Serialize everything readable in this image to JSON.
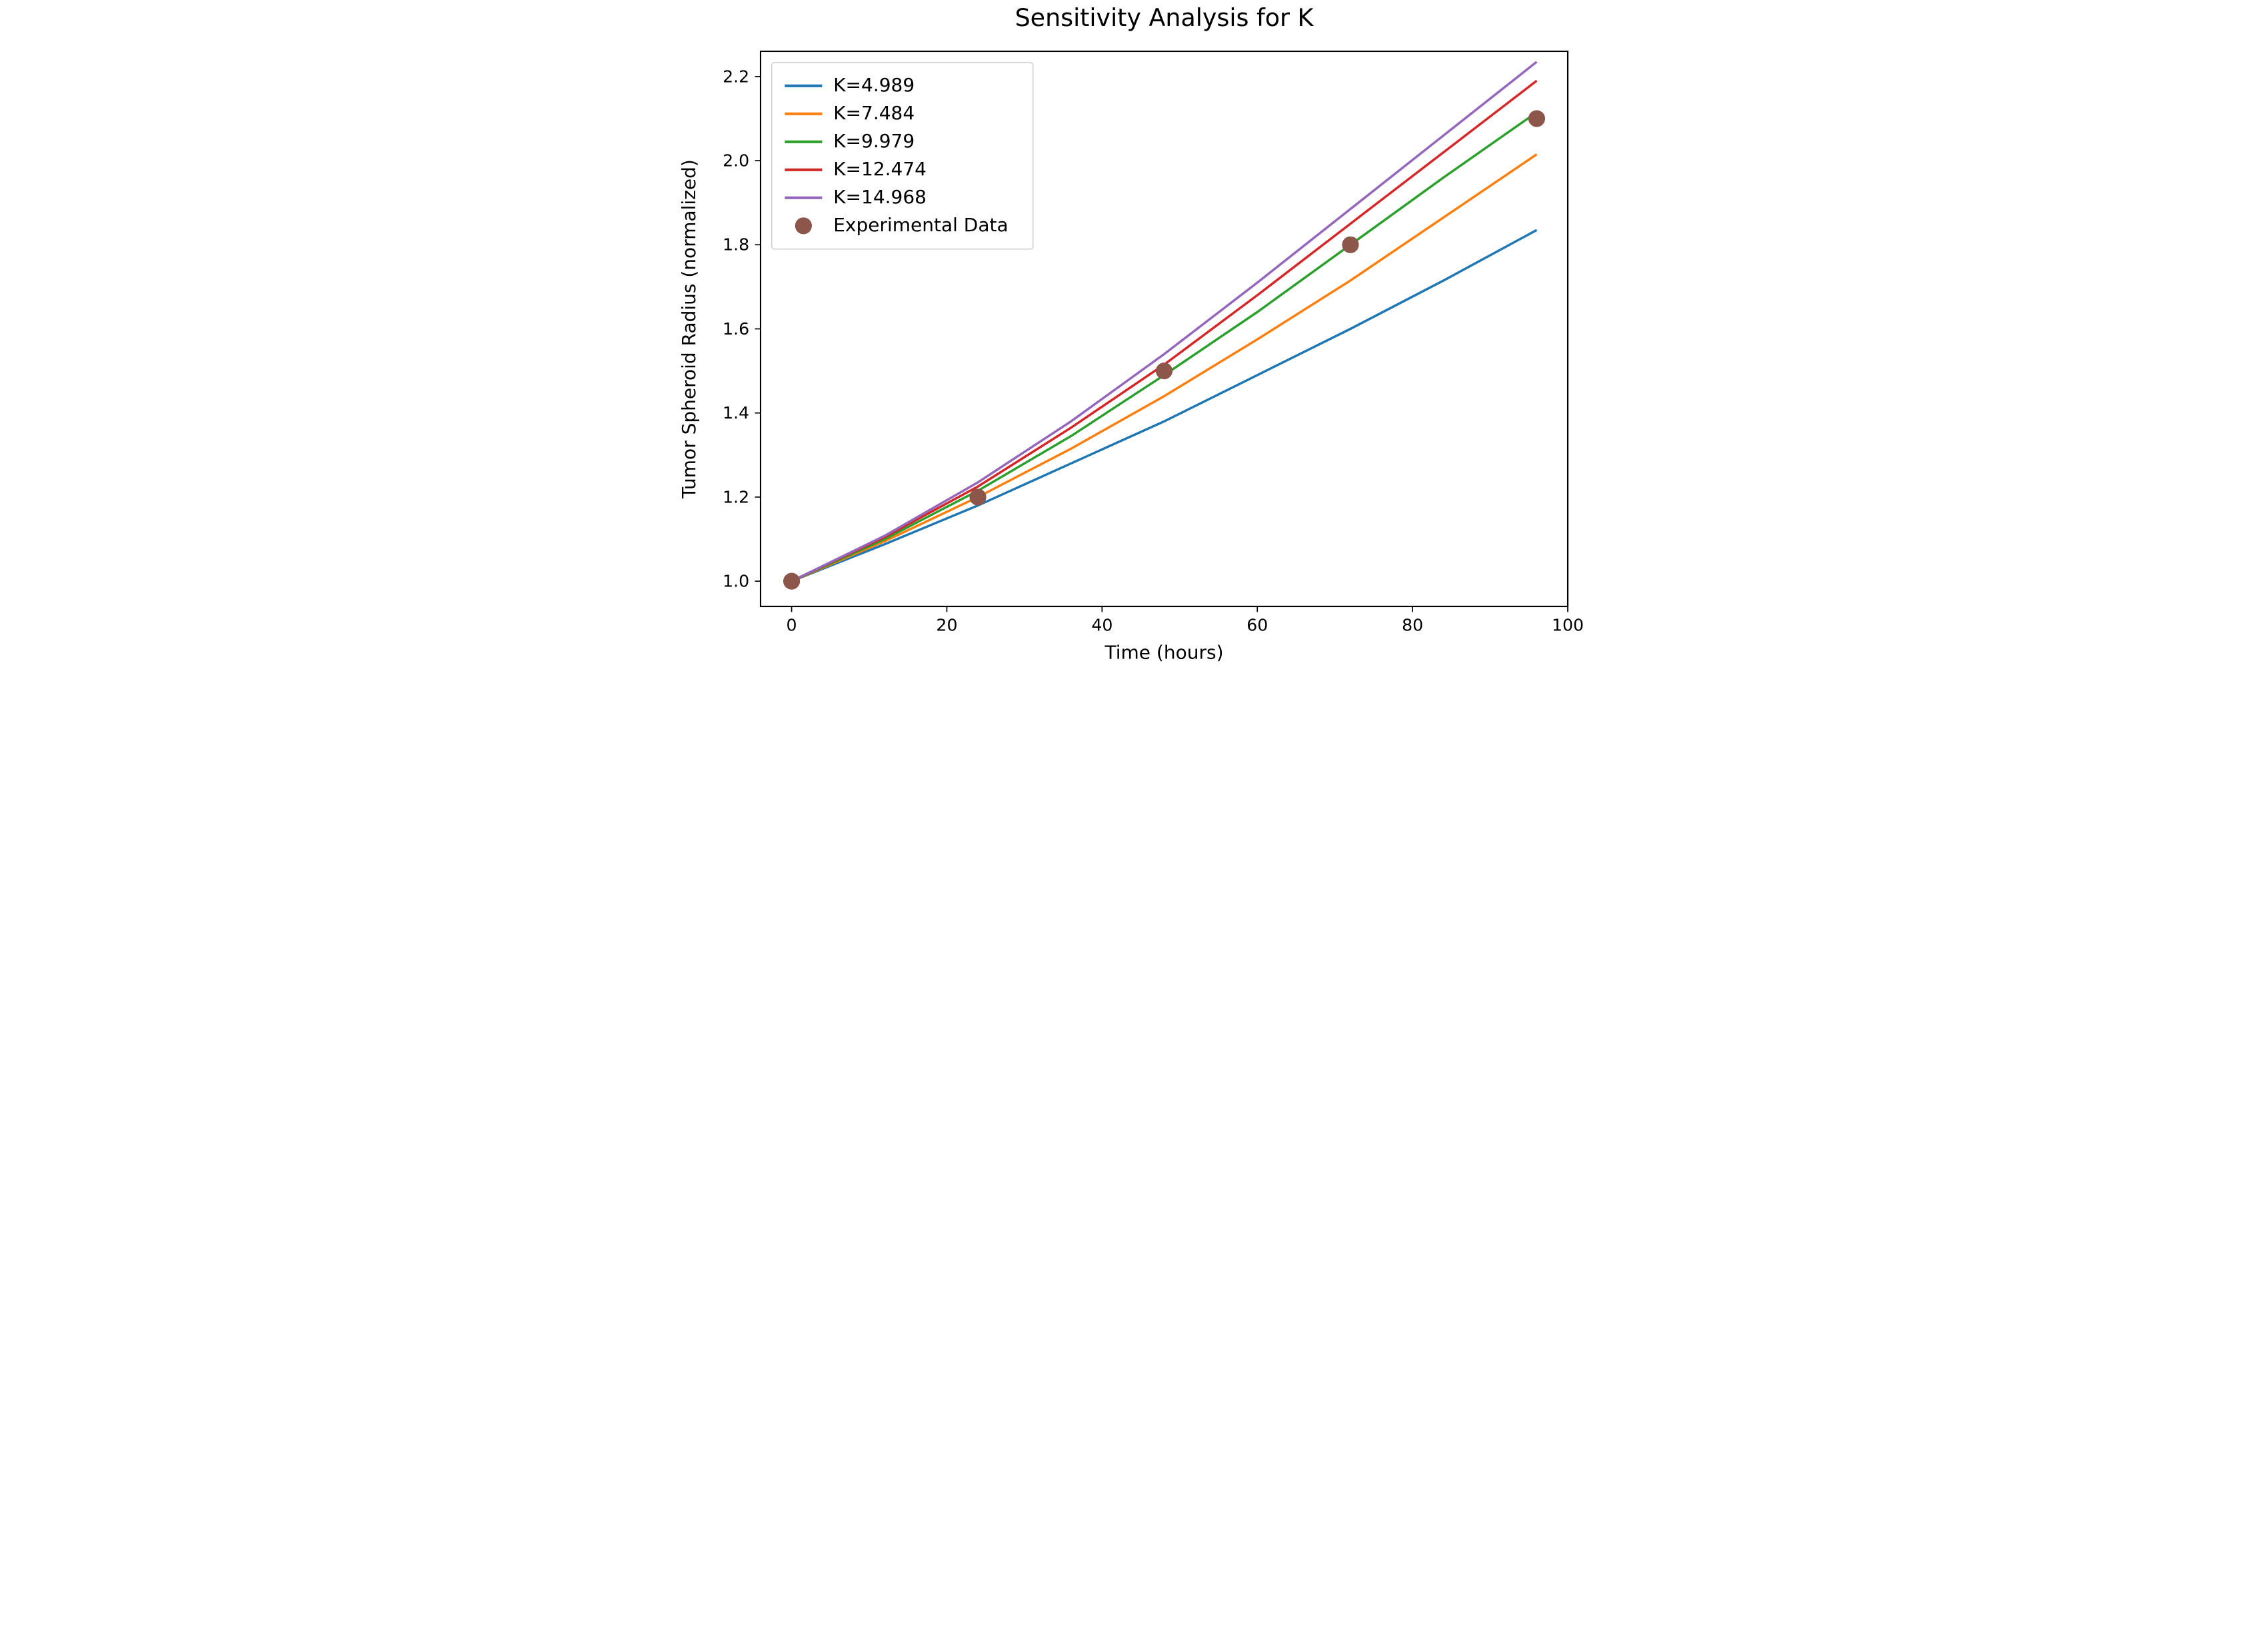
{
  "chart": {
    "type": "line-scatter",
    "title": "Sensitivity Analysis for K",
    "title_fontsize": 26,
    "xlabel": "Time (hours)",
    "ylabel": "Tumor Spheroid Radius (normalized)",
    "label_fontsize": 20,
    "tick_fontsize": 18,
    "background_color": "#ffffff",
    "spine_color": "#000000",
    "xlim": [
      -4,
      100
    ],
    "ylim": [
      0.94,
      2.26
    ],
    "xticks": [
      0,
      20,
      40,
      60,
      80,
      100
    ],
    "yticks": [
      1.0,
      1.2,
      1.4,
      1.6,
      1.8,
      2.0,
      2.2
    ],
    "xtick_labels": [
      "0",
      "20",
      "40",
      "60",
      "80",
      "100"
    ],
    "ytick_labels": [
      "1.0",
      "1.2",
      "1.4",
      "1.6",
      "1.8",
      "2.0",
      "2.2"
    ],
    "line_width": 2.5,
    "marker_size": 9,
    "series": [
      {
        "label": "K=4.989",
        "color": "#1f77b4",
        "x": [
          0,
          12,
          24,
          36,
          48,
          60,
          72,
          84,
          96
        ],
        "y": [
          1.0,
          1.088,
          1.18,
          1.28,
          1.38,
          1.49,
          1.6,
          1.715,
          1.835
        ]
      },
      {
        "label": "K=7.484",
        "color": "#ff7f0e",
        "x": [
          0,
          12,
          24,
          36,
          48,
          60,
          72,
          84,
          96
        ],
        "y": [
          1.0,
          1.095,
          1.2,
          1.315,
          1.44,
          1.575,
          1.715,
          1.865,
          2.015
        ]
      },
      {
        "label": "K=9.979",
        "color": "#2ca02c",
        "x": [
          0,
          12,
          24,
          36,
          48,
          60,
          72,
          84,
          96
        ],
        "y": [
          1.0,
          1.1,
          1.215,
          1.345,
          1.49,
          1.64,
          1.8,
          1.96,
          2.115
        ]
      },
      {
        "label": "K=12.474",
        "color": "#d62728",
        "x": [
          0,
          12,
          24,
          36,
          48,
          60,
          72,
          84,
          96
        ],
        "y": [
          1.0,
          1.105,
          1.225,
          1.365,
          1.515,
          1.68,
          1.85,
          2.02,
          2.19
        ]
      },
      {
        "label": "K=14.968",
        "color": "#9467bd",
        "x": [
          0,
          12,
          24,
          36,
          48,
          60,
          72,
          84,
          96
        ],
        "y": [
          1.0,
          1.108,
          1.235,
          1.38,
          1.54,
          1.71,
          1.885,
          2.06,
          2.235
        ]
      }
    ],
    "scatter": {
      "label": "Experimental Data",
      "color": "#8c564b",
      "marker": "circle",
      "x": [
        0,
        24,
        48,
        72,
        96
      ],
      "y": [
        1.0,
        1.2,
        1.5,
        1.8,
        2.1
      ]
    },
    "legend": {
      "position": "upper-left",
      "border_color": "#cccccc",
      "background_color": "#ffffff",
      "fontsize": 20
    }
  }
}
